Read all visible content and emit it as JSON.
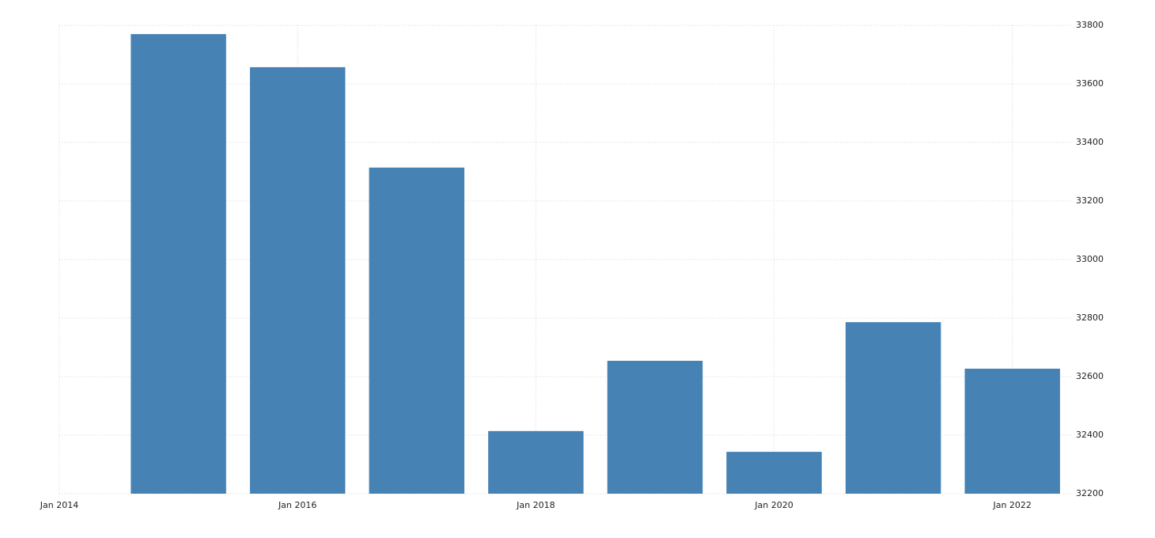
{
  "chart_data": {
    "type": "bar",
    "x": [
      "2015-01",
      "2016-01",
      "2017-01",
      "2018-01",
      "2019-01",
      "2020-01",
      "2021-01",
      "2022-01"
    ],
    "values": [
      33770,
      33657,
      33314,
      32414,
      32654,
      32343,
      32786,
      32627
    ],
    "color": "#4682b4",
    "xlim": [
      "2014-01",
      "2022-07"
    ],
    "xticks": [
      {
        "value": "2014-01",
        "label": "Jan 2014"
      },
      {
        "value": "2016-01",
        "label": "Jan 2016"
      },
      {
        "value": "2018-01",
        "label": "Jan 2018"
      },
      {
        "value": "2020-01",
        "label": "Jan 2020"
      },
      {
        "value": "2022-01",
        "label": "Jan 2022"
      }
    ],
    "ylim": [
      32200,
      33800
    ],
    "yticks": [
      32200,
      32400,
      32600,
      32800,
      33000,
      33200,
      33400,
      33600,
      33800
    ],
    "grid": true
  }
}
